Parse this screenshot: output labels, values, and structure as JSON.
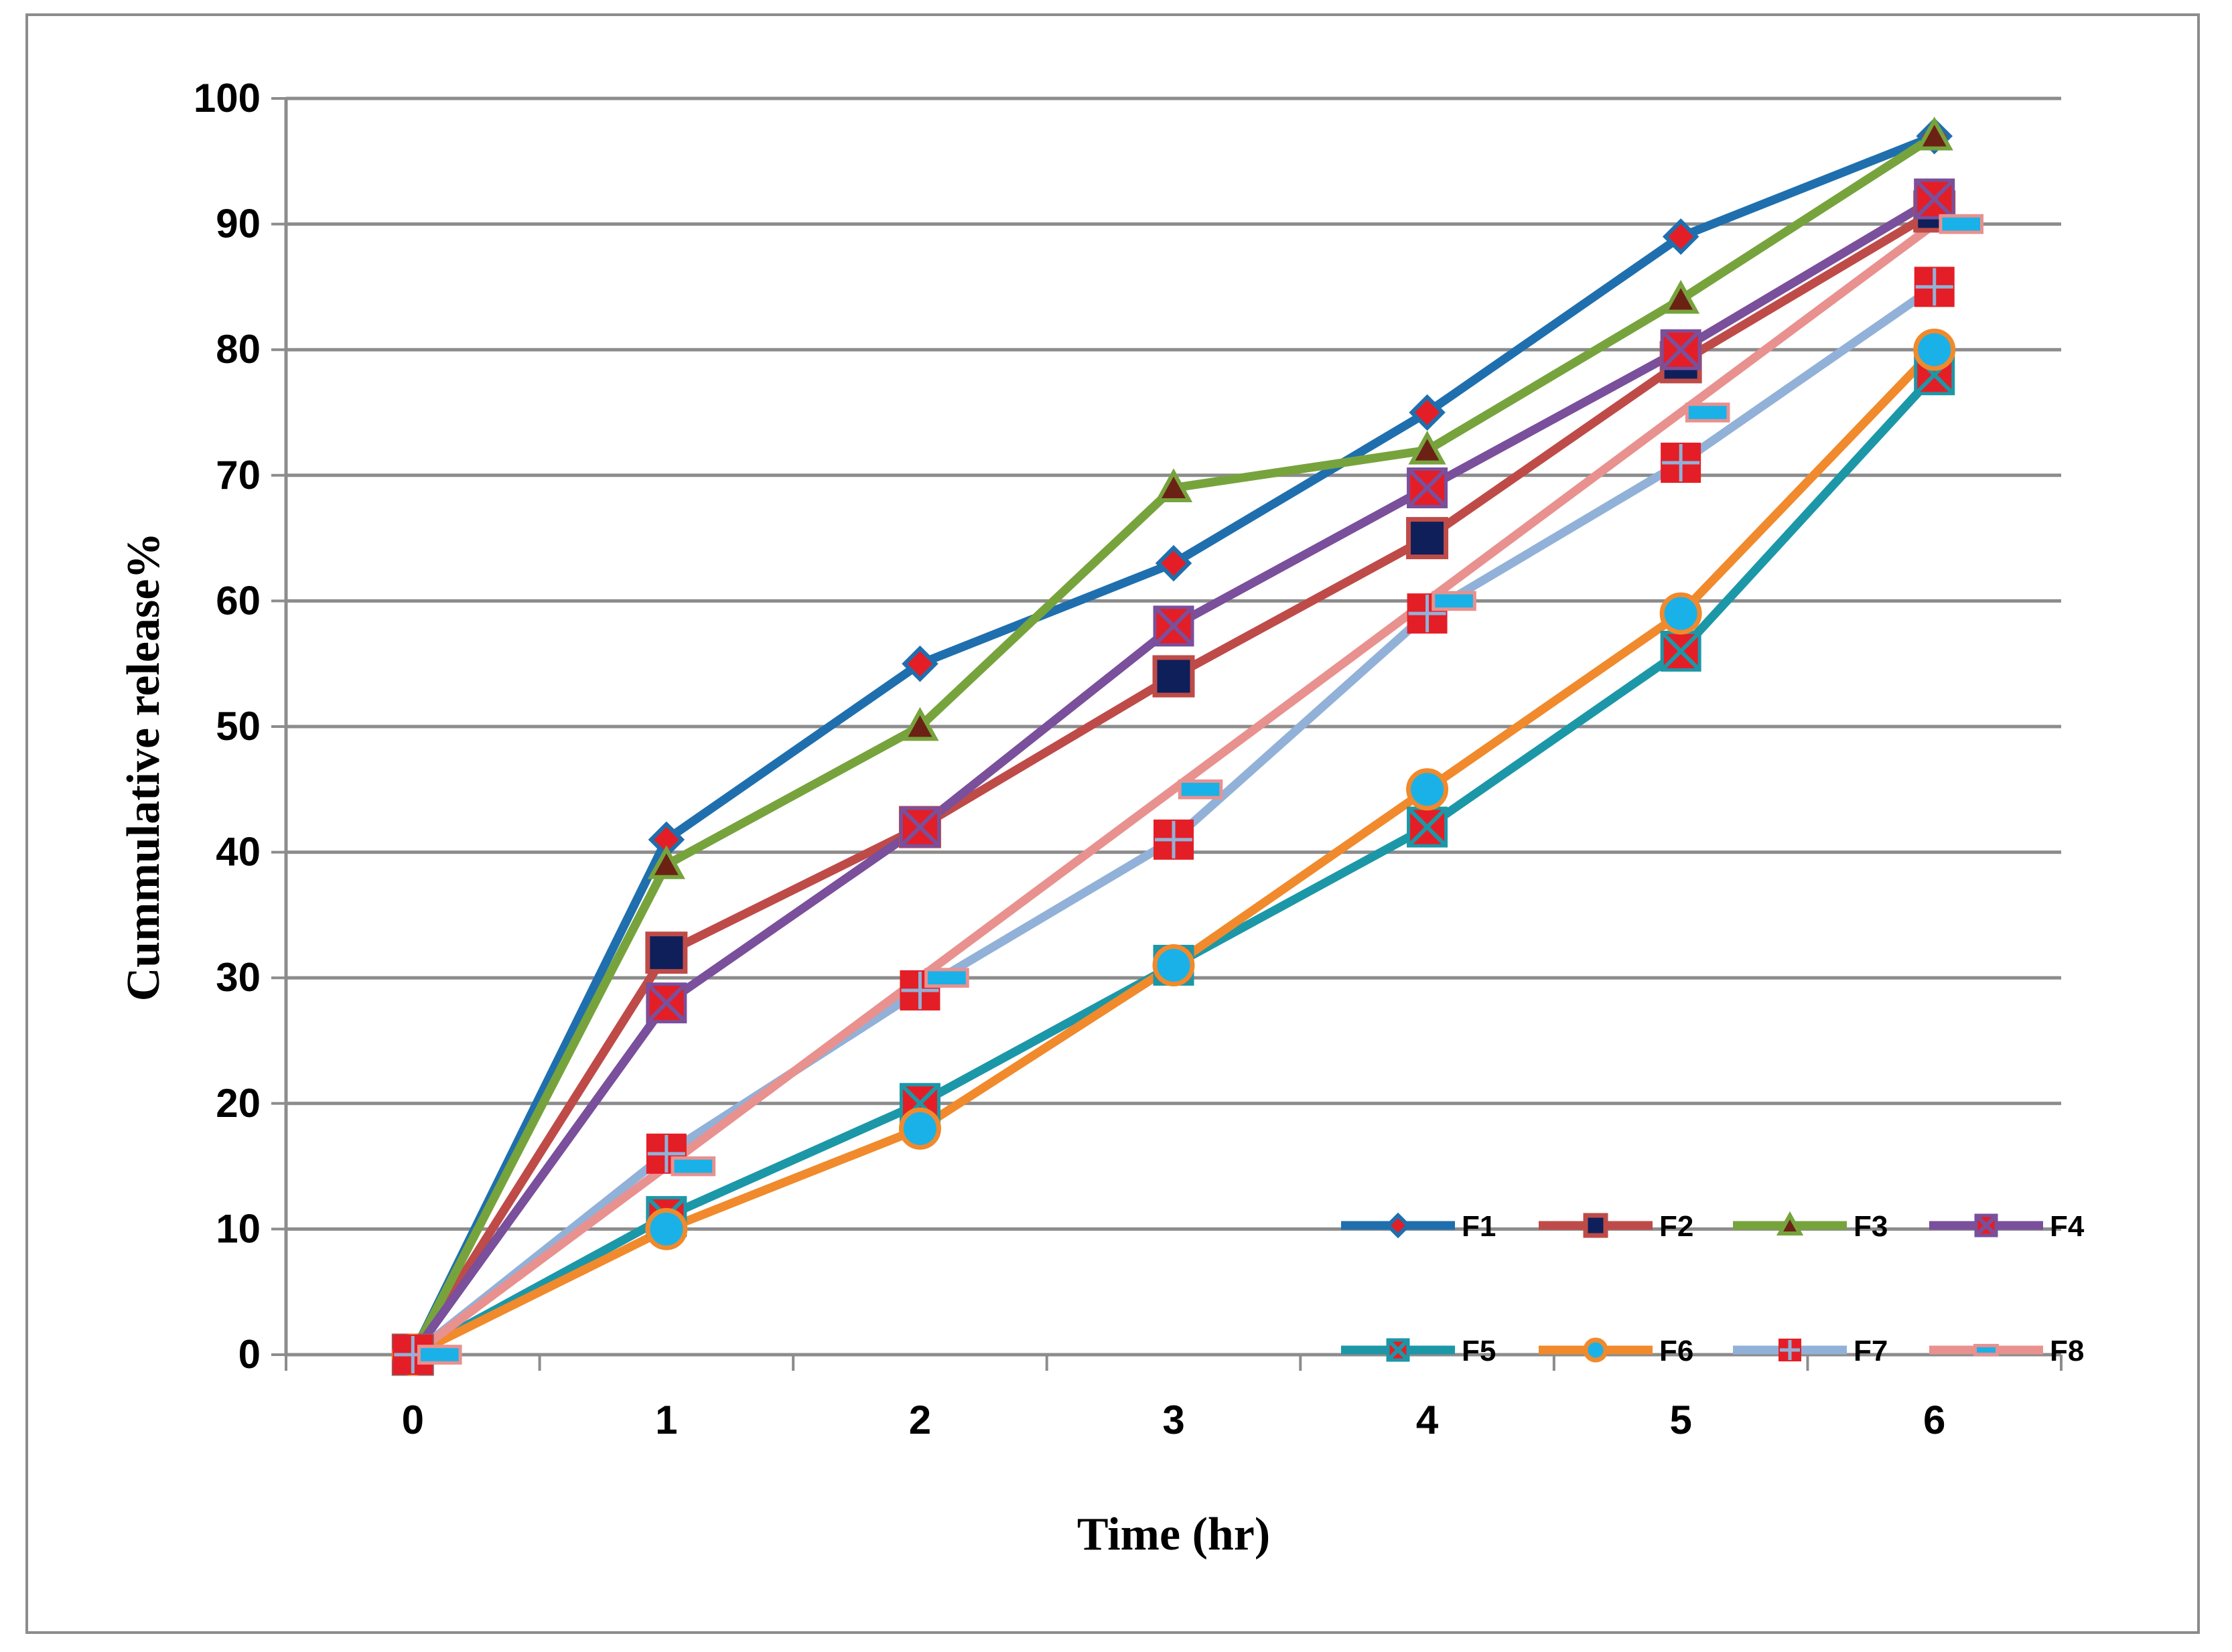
{
  "chart_data": {
    "type": "line",
    "title": "",
    "xlabel": "Time (hr)",
    "ylabel": "Cummulative release%",
    "x": [
      0,
      1,
      2,
      3,
      4,
      5,
      6
    ],
    "categories": [
      "0",
      "1",
      "2",
      "3",
      "4",
      "5",
      "6"
    ],
    "ylim": [
      0,
      100
    ],
    "yticks": [
      0,
      10,
      20,
      30,
      40,
      50,
      60,
      70,
      80,
      90,
      100
    ],
    "yticklabels": [
      "0",
      "10",
      "20",
      "30",
      "40",
      "50",
      "60",
      "70",
      "80",
      "90",
      "100"
    ],
    "grid": true,
    "legend_position": "bottom-right",
    "series": [
      {
        "name": "F1",
        "values": [
          0,
          41,
          55,
          63,
          75,
          89,
          97
        ],
        "color": "#1f6fae",
        "marker": "diamond",
        "marker_fill": "#e41e26",
        "marker_stroke": "#1f6fae"
      },
      {
        "name": "F2",
        "values": [
          0,
          32,
          42,
          54,
          65,
          79,
          91
        ],
        "color": "#be4b48",
        "marker": "square",
        "marker_fill": "#0f1f5a",
        "marker_stroke": "#be4b48"
      },
      {
        "name": "F3",
        "values": [
          0,
          39,
          50,
          69,
          72,
          84,
          97
        ],
        "color": "#77a33d",
        "marker": "triangle",
        "marker_fill": "#6b2214",
        "marker_stroke": "#77a33d"
      },
      {
        "name": "F4",
        "values": [
          0,
          28,
          42,
          58,
          69,
          80,
          92
        ],
        "color": "#7a4f9b",
        "marker": "xsquare",
        "marker_fill": "#e41e26",
        "marker_stroke": "#7a4f9b"
      },
      {
        "name": "F5",
        "values": [
          0,
          11,
          20,
          31,
          42,
          56,
          78
        ],
        "color": "#1c97a8",
        "marker": "xsquare",
        "marker_fill": "#e41e26",
        "marker_stroke": "#1c97a8"
      },
      {
        "name": "F6",
        "values": [
          0,
          10,
          18,
          31,
          45,
          59,
          80
        ],
        "color": "#f08a2c",
        "marker": "circle",
        "marker_fill": "#1ab1e8",
        "marker_stroke": "#f08a2c"
      },
      {
        "name": "F7",
        "values": [
          0,
          16,
          29,
          41,
          59,
          71,
          85
        ],
        "color": "#92b1d8",
        "marker": "plussquare",
        "marker_fill": "#e41e26",
        "marker_stroke": "#92b1d8"
      },
      {
        "name": "F8",
        "values": [
          0,
          15,
          30,
          45,
          60,
          75,
          90
        ],
        "color": "#e8918f",
        "marker": "dash",
        "marker_fill": "#1ab1e8",
        "marker_stroke": "#e8918f"
      }
    ]
  }
}
